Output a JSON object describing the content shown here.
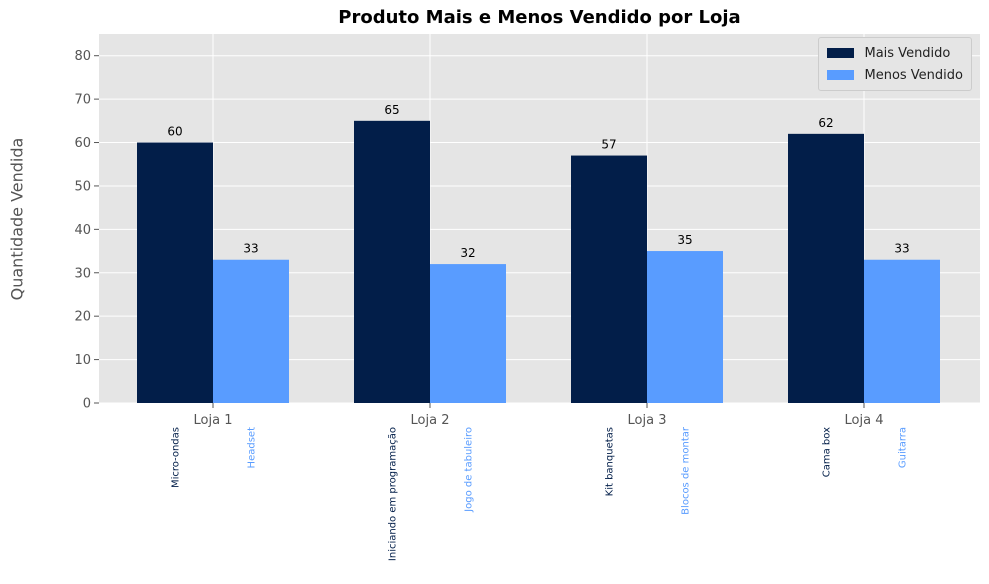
{
  "chart_data": {
    "type": "bar",
    "title": "Produto Mais e Menos Vendido por Loja",
    "xlabel": "",
    "ylabel": "Quantidade Vendida",
    "ylim": [
      0,
      85
    ],
    "yticks": [
      0,
      10,
      20,
      30,
      40,
      50,
      60,
      70,
      80
    ],
    "categories": [
      "Loja 1",
      "Loja 2",
      "Loja 3",
      "Loja 4"
    ],
    "series": [
      {
        "name": "Mais Vendido",
        "color": "#021e49",
        "values": [
          60,
          65,
          57,
          62
        ],
        "products": [
          "Micro-ondas",
          "Iniciando em programação",
          "Kit banquetas",
          "Cama box"
        ]
      },
      {
        "name": "Menos Vendido",
        "color": "#599cff",
        "values": [
          33,
          32,
          35,
          33
        ],
        "products": [
          "Headset",
          "Jogo de tabuleiro",
          "Blocos de montar",
          "Guitarra"
        ]
      }
    ],
    "grid": true,
    "legend_position": "top-right",
    "background": "#e5e5e5"
  }
}
